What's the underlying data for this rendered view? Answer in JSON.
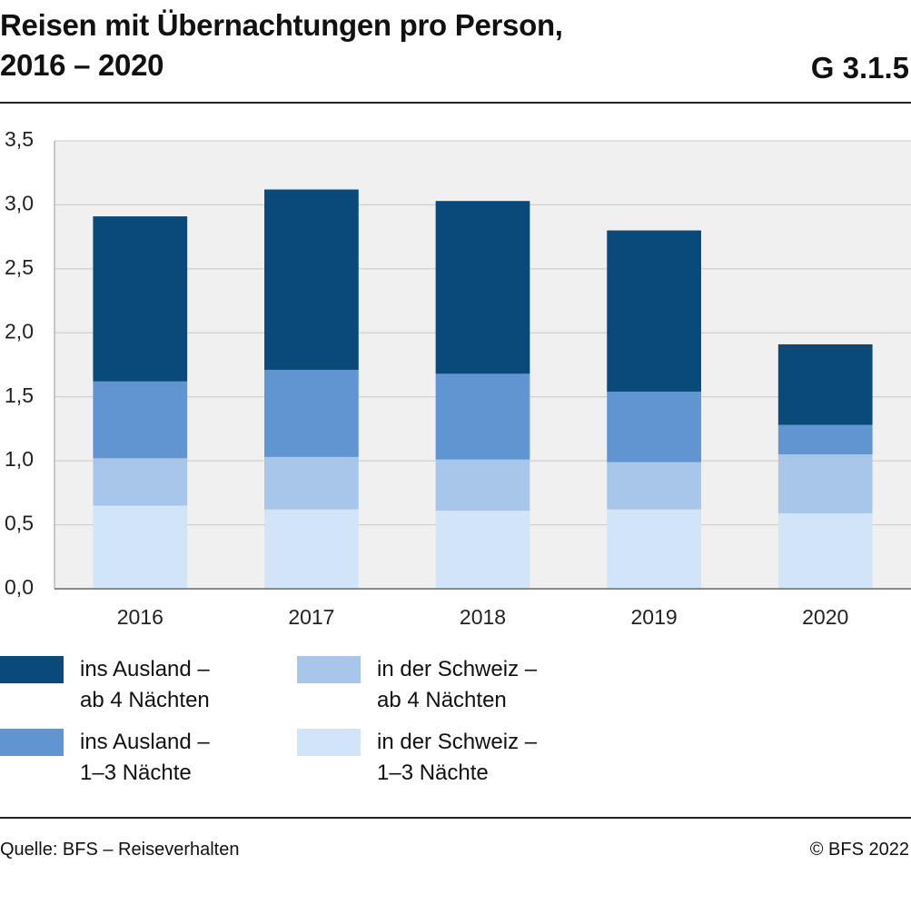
{
  "chart_data": {
    "type": "stacked-bar",
    "title": "Reisen mit Übernachtungen pro Person,\n2016 – 2020",
    "chart_id": "G 3.1.5",
    "categories": [
      "2016",
      "2017",
      "2018",
      "2019",
      "2020"
    ],
    "series": [
      {
        "name": "in der Schweiz –\n1–3 Nächte",
        "color": "#d2e4f8",
        "values": [
          0.65,
          0.62,
          0.61,
          0.62,
          0.59
        ]
      },
      {
        "name": "in der Schweiz –\nab 4 Nächten",
        "color": "#a8c5ea",
        "values": [
          0.37,
          0.41,
          0.4,
          0.37,
          0.46
        ]
      },
      {
        "name": "ins Ausland –\n1–3 Nächte",
        "color": "#6095d2",
        "values": [
          0.6,
          0.68,
          0.67,
          0.55,
          0.23
        ]
      },
      {
        "name": "ins Ausland –\nab 4 Nächten",
        "color": "#0a4a7a",
        "values": [
          1.29,
          1.41,
          1.35,
          1.26,
          0.63
        ]
      }
    ],
    "ylim": [
      0,
      3.5
    ],
    "yticks": [
      {
        "value": 0,
        "label": "0,0"
      },
      {
        "value": 0.5,
        "label": "0,5"
      },
      {
        "value": 1,
        "label": "1,0"
      },
      {
        "value": 1.5,
        "label": "1,5"
      },
      {
        "value": 2,
        "label": "2,0"
      },
      {
        "value": 2.5,
        "label": "2,5"
      },
      {
        "value": 3,
        "label": "3,0"
      },
      {
        "value": 3.5,
        "label": "3,5"
      }
    ],
    "grid": true,
    "source": "Quelle: BFS – Reiseverhalten",
    "copyright": "© BFS 2022"
  }
}
